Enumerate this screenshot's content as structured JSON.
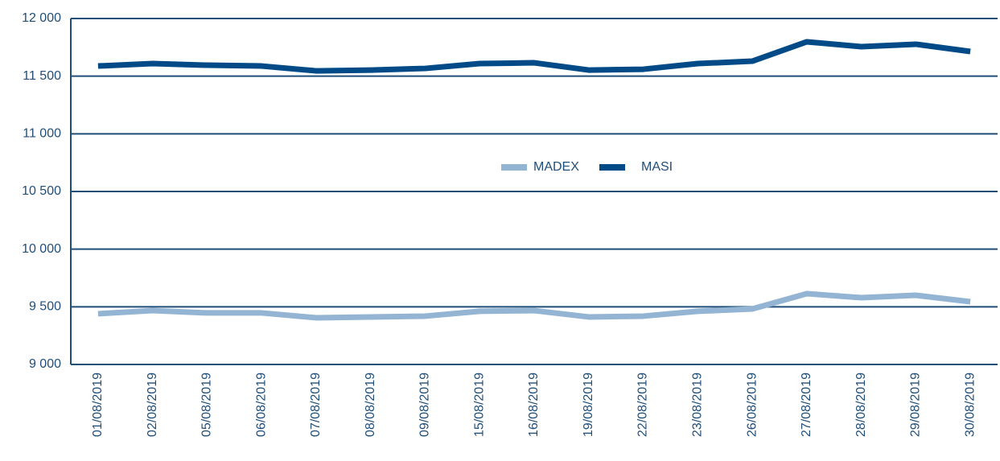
{
  "chart_data": {
    "type": "line",
    "categories": [
      "01/08/2019",
      "02/08/2019",
      "05/08/2019",
      "06/08/2019",
      "07/08/2019",
      "08/08/2019",
      "09/08/2019",
      "15/08/2019",
      "16/08/2019",
      "19/08/2019",
      "22/08/2019",
      "23/08/2019",
      "26/08/2019",
      "27/08/2019",
      "28/08/2019",
      "29/08/2019",
      "30/08/2019"
    ],
    "series": [
      {
        "name": "MADEX",
        "color": "#94b4d4",
        "values": [
          9440,
          9467,
          9447,
          9447,
          9405,
          9412,
          9419,
          9461,
          9467,
          9412,
          9419,
          9461,
          9481,
          9614,
          9579,
          9600,
          9544
        ]
      },
      {
        "name": "MASI",
        "color": "#004a87",
        "values": [
          11588,
          11609,
          11595,
          11588,
          11546,
          11553,
          11567,
          11609,
          11616,
          11553,
          11560,
          11609,
          11630,
          11798,
          11756,
          11777,
          11714
        ]
      }
    ],
    "ylim": [
      9000,
      12000
    ],
    "yticks": [
      {
        "value": 9000,
        "label": "9 000"
      },
      {
        "value": 9500,
        "label": "9 500"
      },
      {
        "value": 10000,
        "label": "10 000"
      },
      {
        "value": 10500,
        "label": "10 500"
      },
      {
        "value": 11000,
        "label": "11 000"
      },
      {
        "value": 11500,
        "label": "11 500"
      },
      {
        "value": 12000,
        "label": "12 000"
      }
    ],
    "grid": true,
    "legend": "center"
  }
}
